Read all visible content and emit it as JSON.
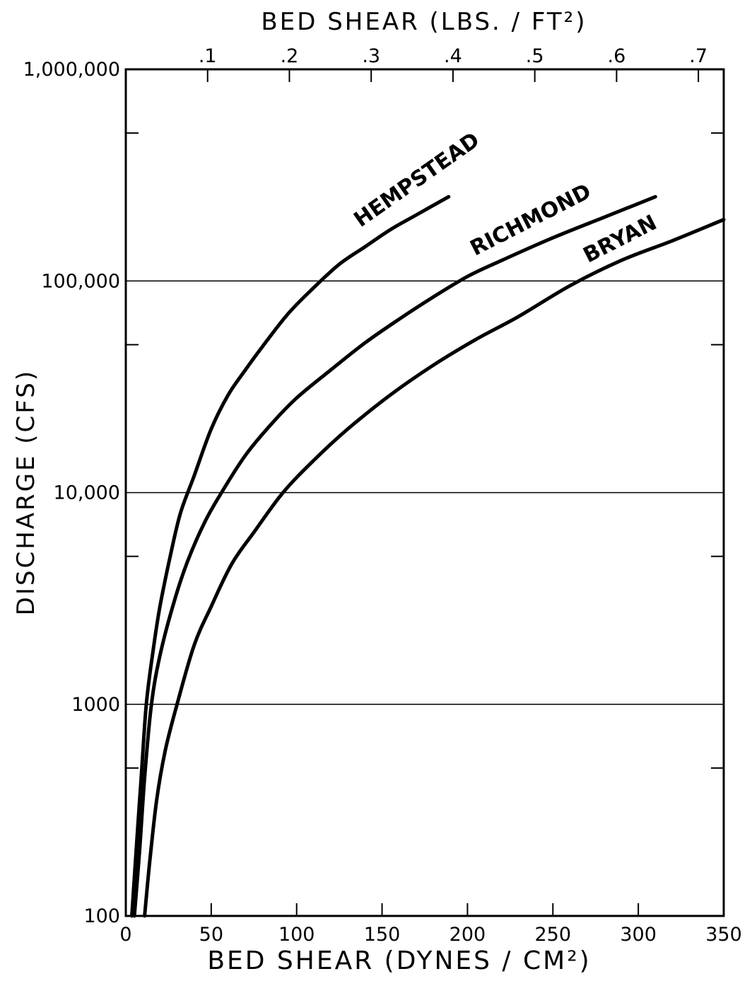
{
  "chart_data": {
    "type": "line",
    "title": "",
    "xlabel": "BED SHEAR (DYNES / CM²)",
    "xlabel_top": "BED SHEAR (LBS. / FT²)",
    "ylabel": "DISCHARGE (CFS)",
    "xlim": [
      0,
      350
    ],
    "ylim": [
      100,
      1000000
    ],
    "y_scale": "log",
    "x_ticks": [
      0,
      50,
      100,
      150,
      200,
      250,
      300,
      350
    ],
    "x_tick_labels": [
      "0",
      "50",
      "100",
      "150",
      "200",
      "250",
      "300",
      "350"
    ],
    "x_top_ticks": [
      0.1,
      0.2,
      0.3,
      0.4,
      0.5,
      0.6,
      0.7
    ],
    "x_top_tick_labels": [
      ".1",
      ".2",
      ".3",
      ".4",
      ".5",
      ".6",
      ".7"
    ],
    "x_top_factor_dynes_per_unit": 478.8,
    "y_ticks": [
      100,
      1000,
      10000,
      100000,
      1000000
    ],
    "y_tick_labels": [
      "100",
      "1000",
      "10,000",
      "100,000",
      "1,000,000"
    ],
    "grid": "horizontal at decades",
    "series": [
      {
        "name": "HEMPSTEAD",
        "x": [
          3.5,
          6,
          9,
          12,
          16,
          20,
          26,
          32,
          40,
          50,
          60,
          70,
          80,
          95,
          110,
          125,
          140,
          155,
          170,
          189
        ],
        "y": [
          100,
          200,
          450,
          1000,
          1800,
          2900,
          5000,
          8000,
          12000,
          20000,
          29000,
          38000,
          49000,
          70000,
          93000,
          120000,
          145000,
          175000,
          205000,
          250000
        ]
      },
      {
        "name": "RICHMOND",
        "x": [
          5,
          8,
          11,
          15,
          20,
          28,
          36,
          46,
          56,
          70,
          85,
          100,
          120,
          140,
          160,
          180,
          200,
          220,
          250,
          280,
          310
        ],
        "y": [
          100,
          200,
          450,
          1000,
          1700,
          3000,
          4700,
          7200,
          10000,
          15000,
          21000,
          28000,
          38000,
          51000,
          66000,
          84000,
          105000,
          125000,
          160000,
          200000,
          250000
        ]
      },
      {
        "name": "BRYAN",
        "x": [
          11,
          14,
          18,
          23,
          30,
          40,
          50,
          62,
          75,
          92,
          110,
          130,
          155,
          180,
          205,
          230,
          260,
          290,
          320,
          350
        ],
        "y": [
          100,
          180,
          350,
          600,
          1000,
          1900,
          2900,
          4600,
          6500,
          10000,
          14200,
          20000,
          29000,
          40000,
          53000,
          68000,
          95000,
          125000,
          155000,
          195000
        ]
      }
    ]
  }
}
